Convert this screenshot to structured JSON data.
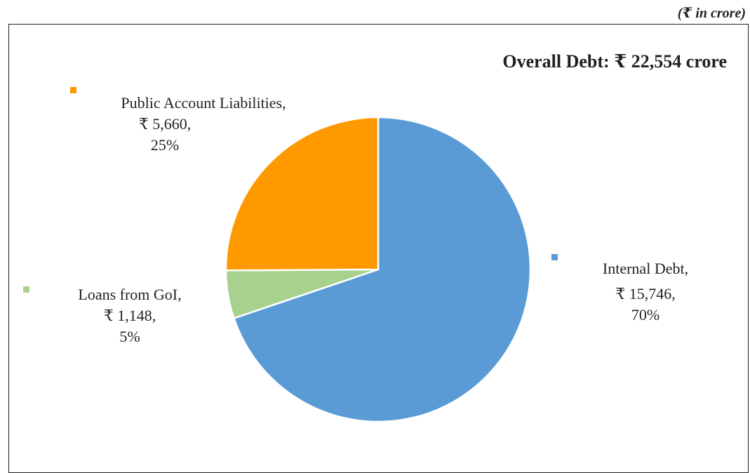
{
  "unit_note": "(₹ in crore)",
  "chart_data": {
    "type": "pie",
    "title": "Overall Debt: ₹ 22,554 crore",
    "slices": [
      {
        "name": "Internal Debt,",
        "value_label": "₹  15,746,",
        "percent_label": "70%",
        "value": 15746,
        "color": "#5b9bd5"
      },
      {
        "name": "Loans from GoI,",
        "value_label": "₹  1,148,",
        "percent_label": "5%",
        "value": 1148,
        "color": "#a9d18e"
      },
      {
        "name": "Public Account Liabilities,",
        "value_label": "₹ 5,660,",
        "percent_label": "25%",
        "value": 5660,
        "color": "#ff9900"
      }
    ]
  }
}
